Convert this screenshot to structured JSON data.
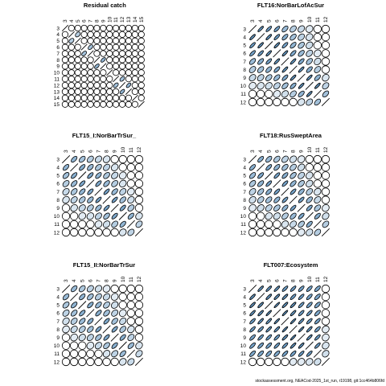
{
  "footer": "stockassessment.org, NEACod-2025_1st_run, r19198, git:1cc464b806fd",
  "chart_data": [
    {
      "type": "heatmap",
      "title": "Residual catch",
      "labels": [
        "3",
        "4",
        "5",
        "6",
        "7",
        "8",
        "9",
        "10",
        "11",
        "12",
        "13",
        "14",
        "15"
      ],
      "correlation": [
        [
          1,
          0,
          0,
          0,
          0,
          0,
          0,
          0,
          0,
          0,
          0,
          0,
          0
        ],
        [
          0,
          1,
          0.4,
          0,
          0,
          0,
          0,
          0,
          0,
          0,
          0,
          0,
          0
        ],
        [
          0,
          0.4,
          1,
          0,
          0,
          0,
          0,
          0,
          0,
          0,
          0,
          0,
          0
        ],
        [
          0,
          0,
          0,
          1,
          0.5,
          0,
          0,
          0,
          0,
          0,
          0,
          0,
          0
        ],
        [
          0,
          0,
          0,
          0.5,
          1,
          0,
          0,
          0,
          0,
          0,
          0,
          0,
          0
        ],
        [
          0,
          0,
          0,
          0,
          0,
          1,
          0.6,
          0,
          0,
          0,
          0,
          0,
          0
        ],
        [
          0,
          0,
          0,
          0,
          0,
          0.6,
          1,
          0,
          0,
          0,
          0,
          0,
          0
        ],
        [
          0,
          0,
          0,
          0,
          0,
          0,
          0,
          1,
          0,
          0,
          0,
          0,
          0
        ],
        [
          0,
          0,
          0,
          0,
          0,
          0,
          0,
          0,
          1,
          0.5,
          0,
          0,
          0
        ],
        [
          0,
          0,
          0,
          0,
          0,
          0,
          0,
          0,
          0.5,
          1,
          0.6,
          0,
          0
        ],
        [
          0,
          0,
          0,
          0,
          0,
          0,
          0,
          0,
          0,
          0.6,
          1,
          0,
          0
        ],
        [
          0,
          0,
          0,
          0,
          0,
          0,
          0,
          0,
          0,
          0,
          0,
          1,
          0
        ],
        [
          0,
          0,
          0,
          0,
          0,
          0,
          0,
          0,
          0,
          0,
          0,
          0,
          1
        ]
      ]
    },
    {
      "type": "heatmap",
      "title": "FLT16:NorBarLofAcSur",
      "labels": [
        "3",
        "4",
        "5",
        "6",
        "7",
        "8",
        "9",
        "10",
        "11",
        "12"
      ],
      "correlation": [
        [
          1,
          0.85,
          0.8,
          0.75,
          0.55,
          0.4,
          0.3,
          0.15,
          0.05,
          0
        ],
        [
          0.85,
          1,
          0.85,
          0.8,
          0.65,
          0.5,
          0.35,
          0.2,
          0.05,
          0
        ],
        [
          0.8,
          0.85,
          1,
          0.85,
          0.75,
          0.6,
          0.45,
          0.25,
          0.1,
          0
        ],
        [
          0.75,
          0.8,
          0.85,
          1,
          0.85,
          0.7,
          0.55,
          0.35,
          0.15,
          0
        ],
        [
          0.55,
          0.65,
          0.75,
          0.85,
          1,
          0.85,
          0.7,
          0.5,
          0.25,
          0.05
        ],
        [
          0.4,
          0.5,
          0.6,
          0.7,
          0.85,
          1,
          0.85,
          0.65,
          0.4,
          0.1
        ],
        [
          0.3,
          0.35,
          0.45,
          0.55,
          0.7,
          0.85,
          1,
          0.85,
          0.6,
          0.2
        ],
        [
          0.15,
          0.2,
          0.25,
          0.35,
          0.5,
          0.65,
          0.85,
          1,
          0.85,
          0.35
        ],
        [
          0.05,
          0.05,
          0.1,
          0.15,
          0.25,
          0.4,
          0.6,
          0.85,
          1,
          0.5
        ],
        [
          0,
          0,
          0,
          0,
          0.05,
          0.1,
          0.2,
          0.35,
          0.5,
          1
        ]
      ]
    },
    {
      "type": "heatmap",
      "title": "FLT15_I:NorBarTrSur_",
      "labels": [
        "3",
        "4",
        "5",
        "6",
        "7",
        "8",
        "9",
        "10",
        "11",
        "12"
      ],
      "correlation": [
        [
          1,
          0.6,
          0.5,
          0.4,
          0.3,
          0.2,
          0.1,
          0,
          0,
          0
        ],
        [
          0.6,
          1,
          0.65,
          0.55,
          0.45,
          0.35,
          0.2,
          0.1,
          0,
          0
        ],
        [
          0.5,
          0.65,
          1,
          0.7,
          0.6,
          0.45,
          0.3,
          0.15,
          0.05,
          0
        ],
        [
          0.4,
          0.55,
          0.7,
          1,
          0.7,
          0.55,
          0.4,
          0.2,
          0.1,
          0
        ],
        [
          0.3,
          0.45,
          0.6,
          0.7,
          1,
          0.75,
          0.55,
          0.35,
          0.15,
          0
        ],
        [
          0.2,
          0.35,
          0.45,
          0.55,
          0.75,
          1,
          0.75,
          0.5,
          0.25,
          0.05
        ],
        [
          0.1,
          0.2,
          0.3,
          0.4,
          0.55,
          0.75,
          1,
          0.7,
          0.4,
          0.1
        ],
        [
          0,
          0.1,
          0.15,
          0.2,
          0.35,
          0.5,
          0.7,
          1,
          0.6,
          0.2
        ],
        [
          0,
          0,
          0.05,
          0.1,
          0.15,
          0.25,
          0.4,
          0.6,
          1,
          0.35
        ],
        [
          0,
          0,
          0,
          0,
          0,
          0.05,
          0.1,
          0.2,
          0.35,
          1
        ]
      ]
    },
    {
      "type": "heatmap",
      "title": "FLT18:RusSweptArea",
      "labels": [
        "3",
        "4",
        "5",
        "6",
        "7",
        "8",
        "9",
        "10",
        "11",
        "12"
      ],
      "correlation": [
        [
          1,
          0.65,
          0.55,
          0.45,
          0.35,
          0.25,
          0.15,
          0.05,
          0,
          0
        ],
        [
          0.65,
          1,
          0.7,
          0.6,
          0.5,
          0.4,
          0.25,
          0.1,
          0.05,
          0
        ],
        [
          0.55,
          0.7,
          1,
          0.75,
          0.65,
          0.5,
          0.35,
          0.2,
          0.05,
          0
        ],
        [
          0.45,
          0.6,
          0.75,
          1,
          0.75,
          0.6,
          0.45,
          0.25,
          0.1,
          0
        ],
        [
          0.35,
          0.5,
          0.65,
          0.75,
          1,
          0.75,
          0.6,
          0.4,
          0.2,
          0.05
        ],
        [
          0.25,
          0.4,
          0.5,
          0.6,
          0.75,
          1,
          0.75,
          0.55,
          0.3,
          0.1
        ],
        [
          0.15,
          0.25,
          0.35,
          0.45,
          0.6,
          0.75,
          1,
          0.7,
          0.45,
          0.15
        ],
        [
          0.05,
          0.1,
          0.2,
          0.25,
          0.4,
          0.55,
          0.7,
          1,
          0.65,
          0.25
        ],
        [
          0,
          0.05,
          0.05,
          0.1,
          0.2,
          0.3,
          0.45,
          0.65,
          1,
          0.4
        ],
        [
          0,
          0,
          0,
          0,
          0.05,
          0.1,
          0.15,
          0.25,
          0.4,
          1
        ]
      ]
    },
    {
      "type": "heatmap",
      "title": "FLT15_II:NorBarTrSur",
      "labels": [
        "3",
        "4",
        "5",
        "6",
        "7",
        "8",
        "9",
        "10",
        "11",
        "12"
      ],
      "correlation": [
        [
          1,
          0.55,
          0.45,
          0.35,
          0.25,
          0.15,
          0.05,
          0,
          0,
          0
        ],
        [
          0.55,
          1,
          0.6,
          0.5,
          0.4,
          0.3,
          0.15,
          0.05,
          0,
          0
        ],
        [
          0.45,
          0.6,
          1,
          0.65,
          0.55,
          0.4,
          0.25,
          0.1,
          0,
          0
        ],
        [
          0.35,
          0.5,
          0.65,
          1,
          0.65,
          0.5,
          0.35,
          0.15,
          0.05,
          0
        ],
        [
          0.25,
          0.4,
          0.55,
          0.65,
          1,
          0.7,
          0.5,
          0.3,
          0.1,
          0
        ],
        [
          0.15,
          0.3,
          0.4,
          0.5,
          0.7,
          1,
          0.7,
          0.45,
          0.2,
          0.05
        ],
        [
          0.05,
          0.15,
          0.25,
          0.35,
          0.5,
          0.7,
          1,
          0.65,
          0.35,
          0.1
        ],
        [
          0,
          0.05,
          0.1,
          0.15,
          0.3,
          0.45,
          0.65,
          1,
          0.55,
          0.2
        ],
        [
          0,
          0,
          0,
          0.05,
          0.1,
          0.2,
          0.35,
          0.55,
          1,
          0.3
        ],
        [
          0,
          0,
          0,
          0,
          0,
          0.05,
          0.1,
          0.2,
          0.3,
          1
        ]
      ]
    },
    {
      "type": "heatmap",
      "title": "FLT007:Ecosystem",
      "labels": [
        "3",
        "4",
        "5",
        "6",
        "7",
        "8",
        "9",
        "10",
        "11",
        "12"
      ],
      "correlation": [
        [
          1,
          0.85,
          0.85,
          0.85,
          0.8,
          0.8,
          0.75,
          0.75,
          0.7,
          0.1
        ],
        [
          0.85,
          1,
          0.85,
          0.85,
          0.85,
          0.8,
          0.8,
          0.75,
          0.7,
          0.1
        ],
        [
          0.85,
          0.85,
          1,
          0.9,
          0.85,
          0.85,
          0.8,
          0.75,
          0.7,
          0.1
        ],
        [
          0.85,
          0.85,
          0.9,
          1,
          0.9,
          0.85,
          0.8,
          0.8,
          0.7,
          0.1
        ],
        [
          0.8,
          0.85,
          0.85,
          0.9,
          1,
          0.9,
          0.85,
          0.8,
          0.75,
          0.1
        ],
        [
          0.8,
          0.8,
          0.85,
          0.85,
          0.9,
          1,
          0.9,
          0.85,
          0.75,
          0.15
        ],
        [
          0.75,
          0.8,
          0.8,
          0.8,
          0.85,
          0.9,
          1,
          0.85,
          0.8,
          0.15
        ],
        [
          0.75,
          0.75,
          0.75,
          0.8,
          0.8,
          0.85,
          0.85,
          1,
          0.8,
          0.2
        ],
        [
          0.7,
          0.7,
          0.7,
          0.7,
          0.75,
          0.75,
          0.8,
          0.8,
          1,
          0.25
        ],
        [
          0.1,
          0.1,
          0.1,
          0.1,
          0.1,
          0.15,
          0.15,
          0.2,
          0.25,
          1
        ]
      ]
    }
  ]
}
